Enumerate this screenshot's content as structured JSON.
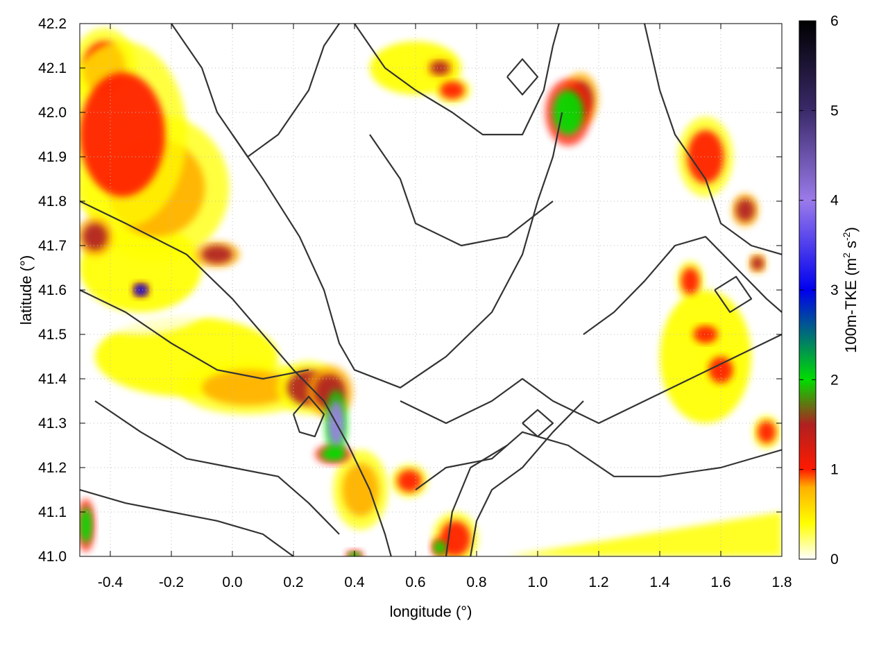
{
  "chart_data": {
    "type": "heatmap",
    "title": "",
    "xlabel": "longitude (°)",
    "ylabel": "latitude (°)",
    "colorbar_label": "100m-TKE (m² s⁻²)",
    "colorbar_label_parts": {
      "base": "100m-TKE (m",
      "sup1": "2",
      "mid": " s",
      "sup2": "-2",
      "end": ")"
    },
    "xlim": [
      -0.5,
      1.8
    ],
    "ylim": [
      41.0,
      42.2
    ],
    "zlim": [
      0,
      6
    ],
    "grid": true,
    "x_ticks": [
      "-0.4",
      "-0.2",
      "0.0",
      "0.2",
      "0.4",
      "0.6",
      "0.8",
      "1.0",
      "1.2",
      "1.4",
      "1.6",
      "1.8"
    ],
    "x_tick_values": [
      -0.4,
      -0.2,
      0.0,
      0.2,
      0.4,
      0.6,
      0.8,
      1.0,
      1.2,
      1.4,
      1.6,
      1.8
    ],
    "y_ticks": [
      "41.0",
      "41.1",
      "41.2",
      "41.3",
      "41.4",
      "41.5",
      "41.6",
      "41.7",
      "41.8",
      "41.9",
      "42.0",
      "42.1",
      "42.2"
    ],
    "y_tick_values": [
      41.0,
      41.1,
      41.2,
      41.3,
      41.4,
      41.5,
      41.6,
      41.7,
      41.8,
      41.9,
      42.0,
      42.1,
      42.2
    ],
    "colorbar_ticks": [
      "0",
      "1",
      "2",
      "3",
      "4",
      "5",
      "6"
    ],
    "colorbar_tick_values": [
      0,
      1,
      2,
      3,
      4,
      5,
      6
    ],
    "colormap": [
      {
        "value": 0.0,
        "color": "#ffffff"
      },
      {
        "value": 0.4,
        "color": "#ffff00"
      },
      {
        "value": 0.8,
        "color": "#ffb000"
      },
      {
        "value": 1.0,
        "color": "#ff1a00"
      },
      {
        "value": 1.5,
        "color": "#b02020"
      },
      {
        "value": 2.0,
        "color": "#00dd00"
      },
      {
        "value": 3.0,
        "color": "#0000ee"
      },
      {
        "value": 4.0,
        "color": "#9b7bea"
      },
      {
        "value": 5.0,
        "color": "#3a2a6a"
      },
      {
        "value": 6.0,
        "color": "#000000"
      }
    ],
    "tke_features": [
      {
        "lon": -0.36,
        "lat": 41.95,
        "r_lon": 0.14,
        "r_lat": 0.14,
        "value": 1.05
      },
      {
        "lon": -0.25,
        "lat": 41.83,
        "r_lon": 0.16,
        "r_lat": 0.11,
        "value": 0.95
      },
      {
        "lon": -0.42,
        "lat": 42.1,
        "r_lon": 0.07,
        "r_lat": 0.06,
        "value": 1.0
      },
      {
        "lon": -0.3,
        "lat": 41.65,
        "r_lon": 0.2,
        "r_lat": 0.1,
        "value": 0.75
      },
      {
        "lon": -0.45,
        "lat": 41.72,
        "r_lon": 0.04,
        "r_lat": 0.03,
        "value": 1.9
      },
      {
        "lon": -0.3,
        "lat": 41.6,
        "r_lon": 0.02,
        "r_lat": 0.012,
        "value": 3.6
      },
      {
        "lon": -0.05,
        "lat": 41.68,
        "r_lon": 0.05,
        "r_lat": 0.02,
        "value": 1.7
      },
      {
        "lon": -0.15,
        "lat": 41.45,
        "r_lon": 0.3,
        "r_lat": 0.09,
        "value": 0.45
      },
      {
        "lon": 0.05,
        "lat": 41.38,
        "r_lon": 0.15,
        "r_lat": 0.04,
        "value": 0.85
      },
      {
        "lon": 0.25,
        "lat": 41.38,
        "r_lon": 0.07,
        "r_lat": 0.04,
        "value": 1.5
      },
      {
        "lon": 0.34,
        "lat": 41.3,
        "r_lon": 0.025,
        "r_lat": 0.05,
        "value": 4.3
      },
      {
        "lon": 0.32,
        "lat": 41.37,
        "r_lon": 0.05,
        "r_lat": 0.04,
        "value": 1.6
      },
      {
        "lon": 0.33,
        "lat": 41.23,
        "r_lon": 0.04,
        "r_lat": 0.015,
        "value": 2.2
      },
      {
        "lon": 0.42,
        "lat": 41.15,
        "r_lon": 0.06,
        "r_lat": 0.06,
        "value": 0.9
      },
      {
        "lon": 0.58,
        "lat": 41.17,
        "r_lon": 0.04,
        "r_lat": 0.025,
        "value": 1.1
      },
      {
        "lon": 0.73,
        "lat": 41.04,
        "r_lon": 0.05,
        "r_lat": 0.04,
        "value": 1.3
      },
      {
        "lon": 0.68,
        "lat": 41.02,
        "r_lon": 0.02,
        "r_lat": 0.015,
        "value": 2.4
      },
      {
        "lon": 1.1,
        "lat": 42.0,
        "r_lon": 0.05,
        "r_lat": 0.05,
        "value": 2.6
      },
      {
        "lon": 1.14,
        "lat": 42.03,
        "r_lon": 0.04,
        "r_lat": 0.04,
        "value": 1.6
      },
      {
        "lon": 0.72,
        "lat": 42.05,
        "r_lon": 0.04,
        "r_lat": 0.02,
        "value": 1.2
      },
      {
        "lon": 0.68,
        "lat": 42.1,
        "r_lon": 0.03,
        "r_lat": 0.015,
        "value": 1.8
      },
      {
        "lon": 1.55,
        "lat": 41.9,
        "r_lon": 0.06,
        "r_lat": 0.06,
        "value": 1.15
      },
      {
        "lon": 1.68,
        "lat": 41.78,
        "r_lon": 0.03,
        "r_lat": 0.025,
        "value": 1.8
      },
      {
        "lon": 1.72,
        "lat": 41.66,
        "r_lon": 0.02,
        "r_lat": 0.015,
        "value": 1.9
      },
      {
        "lon": 1.5,
        "lat": 41.62,
        "r_lon": 0.03,
        "r_lat": 0.03,
        "value": 1.2
      },
      {
        "lon": 1.55,
        "lat": 41.5,
        "r_lon": 0.04,
        "r_lat": 0.02,
        "value": 1.4
      },
      {
        "lon": 1.6,
        "lat": 41.42,
        "r_lon": 0.04,
        "r_lat": 0.03,
        "value": 1.1
      },
      {
        "lon": 1.75,
        "lat": 41.28,
        "r_lon": 0.03,
        "r_lat": 0.025,
        "value": 1.3
      },
      {
        "lon": 1.55,
        "lat": 41.45,
        "r_lon": 0.15,
        "r_lat": 0.15,
        "value": 0.4
      },
      {
        "lon": 1.2,
        "lat": 42.12,
        "r_lon": 0.25,
        "r_lat": 0.06,
        "value": 0.35
      },
      {
        "lon": 0.6,
        "lat": 42.1,
        "r_lon": 0.15,
        "r_lat": 0.06,
        "value": 0.5
      },
      {
        "lon": -0.48,
        "lat": 41.07,
        "r_lon": 0.02,
        "r_lat": 0.04,
        "value": 2.4
      },
      {
        "lon": 0.4,
        "lat": 41.0,
        "r_lon": 0.02,
        "r_lat": 0.01,
        "value": 2.0
      },
      {
        "lon": 0.5,
        "lat": 41.45,
        "r_lon": 0.08,
        "r_lat": 0.06,
        "value": 0.35
      },
      {
        "lon": 0.9,
        "lat": 41.25,
        "r_lon": 0.1,
        "r_lat": 0.05,
        "value": 0.3
      },
      {
        "lon": 1.1,
        "lat": 41.3,
        "r_lon": 0.05,
        "r_lat": 0.03,
        "value": 0.35
      },
      {
        "lon": 1.3,
        "lat": 41.75,
        "r_lon": 0.07,
        "r_lat": 0.05,
        "value": 0.3
      }
    ],
    "coastal_band": {
      "lon_start": 0.9,
      "lat_at_start": 41.0,
      "lon_end": 1.8,
      "lat_at_end": 41.1,
      "value": 0.55
    },
    "contours": [
      [
        [
          0.0,
          41.95
        ],
        [
          0.1,
          41.85
        ],
        [
          0.22,
          41.72
        ],
        [
          0.3,
          41.6
        ],
        [
          0.35,
          41.48
        ],
        [
          0.4,
          41.42
        ],
        [
          0.55,
          41.38
        ],
        [
          0.7,
          41.45
        ],
        [
          0.85,
          41.55
        ],
        [
          0.95,
          41.68
        ],
        [
          1.0,
          41.8
        ],
        [
          1.05,
          41.9
        ],
        [
          1.08,
          42.0
        ]
      ],
      [
        [
          -0.5,
          41.8
        ],
        [
          -0.35,
          41.75
        ],
        [
          -0.15,
          41.68
        ],
        [
          0.0,
          41.58
        ],
        [
          0.1,
          41.5
        ],
        [
          0.2,
          41.42
        ],
        [
          0.3,
          41.35
        ],
        [
          0.38,
          41.25
        ],
        [
          0.45,
          41.15
        ],
        [
          0.5,
          41.05
        ],
        [
          0.52,
          41.0
        ]
      ],
      [
        [
          -0.45,
          41.35
        ],
        [
          -0.3,
          41.28
        ],
        [
          -0.15,
          41.22
        ],
        [
          0.0,
          41.2
        ],
        [
          0.15,
          41.18
        ],
        [
          0.25,
          41.12
        ],
        [
          0.35,
          41.05
        ]
      ],
      [
        [
          -0.5,
          41.6
        ],
        [
          -0.35,
          41.55
        ],
        [
          -0.2,
          41.48
        ],
        [
          -0.05,
          41.42
        ],
        [
          0.1,
          41.4
        ],
        [
          0.25,
          41.42
        ]
      ],
      [
        [
          0.45,
          41.95
        ],
        [
          0.55,
          41.85
        ],
        [
          0.6,
          41.75
        ],
        [
          0.75,
          41.7
        ],
        [
          0.9,
          41.72
        ],
        [
          1.05,
          41.8
        ]
      ],
      [
        [
          0.55,
          41.35
        ],
        [
          0.7,
          41.3
        ],
        [
          0.85,
          41.35
        ],
        [
          0.95,
          41.4
        ],
        [
          1.05,
          41.35
        ],
        [
          1.2,
          41.3
        ],
        [
          1.35,
          41.35
        ],
        [
          1.5,
          41.4
        ],
        [
          1.65,
          41.45
        ],
        [
          1.8,
          41.5
        ]
      ],
      [
        [
          0.6,
          41.15
        ],
        [
          0.7,
          41.2
        ],
        [
          0.85,
          41.22
        ],
        [
          0.95,
          41.28
        ],
        [
          1.1,
          41.25
        ],
        [
          1.25,
          41.18
        ],
        [
          1.4,
          41.18
        ],
        [
          1.6,
          41.2
        ],
        [
          1.8,
          41.24
        ]
      ],
      [
        [
          0.7,
          41.0
        ],
        [
          0.72,
          41.1
        ],
        [
          0.78,
          41.2
        ],
        [
          0.9,
          41.25
        ]
      ],
      [
        [
          0.78,
          41.0
        ],
        [
          0.8,
          41.08
        ],
        [
          0.85,
          41.15
        ],
        [
          0.95,
          41.2
        ],
        [
          1.05,
          41.28
        ],
        [
          1.15,
          41.35
        ]
      ],
      [
        [
          -0.2,
          42.2
        ],
        [
          -0.1,
          42.1
        ],
        [
          -0.05,
          42.0
        ],
        [
          0.05,
          41.9
        ],
        [
          0.15,
          41.95
        ],
        [
          0.25,
          42.05
        ],
        [
          0.3,
          42.15
        ],
        [
          0.35,
          42.2
        ]
      ],
      [
        [
          1.35,
          42.2
        ],
        [
          1.4,
          42.05
        ],
        [
          1.45,
          41.95
        ],
        [
          1.55,
          41.85
        ],
        [
          1.6,
          41.75
        ],
        [
          1.7,
          41.7
        ],
        [
          1.8,
          41.68
        ]
      ],
      [
        [
          1.15,
          41.5
        ],
        [
          1.25,
          41.55
        ],
        [
          1.35,
          41.62
        ],
        [
          1.45,
          41.7
        ],
        [
          1.55,
          41.72
        ],
        [
          1.65,
          41.65
        ],
        [
          1.75,
          41.58
        ],
        [
          1.8,
          41.55
        ]
      ],
      [
        [
          0.4,
          42.2
        ],
        [
          0.5,
          42.1
        ],
        [
          0.6,
          42.05
        ],
        [
          0.72,
          42.0
        ],
        [
          0.82,
          41.95
        ],
        [
          0.95,
          41.95
        ],
        [
          1.02,
          42.05
        ],
        [
          1.05,
          42.15
        ],
        [
          1.07,
          42.2
        ]
      ],
      [
        [
          -0.5,
          41.15
        ],
        [
          -0.35,
          41.12
        ],
        [
          -0.2,
          41.1
        ],
        [
          -0.05,
          41.08
        ],
        [
          0.1,
          41.05
        ],
        [
          0.2,
          41.0
        ]
      ],
      [
        [
          0.2,
          41.32
        ],
        [
          0.25,
          41.36
        ],
        [
          0.3,
          41.32
        ],
        [
          0.27,
          41.27
        ],
        [
          0.22,
          41.28
        ],
        [
          0.2,
          41.32
        ]
      ],
      [
        [
          0.95,
          41.3
        ],
        [
          1.0,
          41.33
        ],
        [
          1.05,
          41.3
        ],
        [
          1.0,
          41.27
        ],
        [
          0.95,
          41.3
        ]
      ],
      [
        [
          1.58,
          41.6
        ],
        [
          1.65,
          41.63
        ],
        [
          1.7,
          41.58
        ],
        [
          1.63,
          41.55
        ],
        [
          1.58,
          41.6
        ]
      ],
      [
        [
          0.9,
          42.08
        ],
        [
          0.95,
          42.12
        ],
        [
          1.0,
          42.08
        ],
        [
          0.95,
          42.04
        ],
        [
          0.9,
          42.08
        ]
      ]
    ]
  }
}
